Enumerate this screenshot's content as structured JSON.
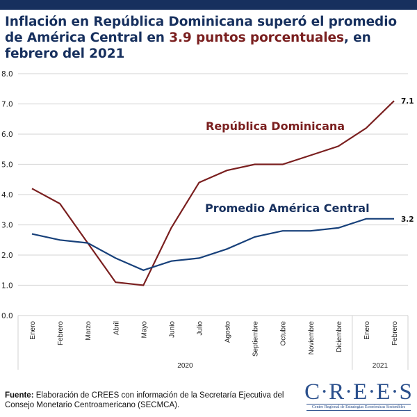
{
  "header": {
    "title_part1": "Inflación en República Dominicana superó el promedio de América Central en ",
    "title_highlight": "3.9 puntos porcentuales",
    "title_part2": ", en febrero del 2021",
    "colors": {
      "title": "#17305e",
      "highlight": "#7a1f1f",
      "bar": "#17305e"
    }
  },
  "chart_data": {
    "type": "line",
    "title": "Inflación en República Dominicana superó el promedio de América Central en 3.9 puntos porcentuales, en febrero del 2021",
    "xlabel": "",
    "ylabel": "",
    "ylim": [
      0,
      8
    ],
    "yticks": [
      "0.0",
      "1.0",
      "2.0",
      "3.0",
      "4.0",
      "5.0",
      "6.0",
      "7.0",
      "8.0"
    ],
    "grid": true,
    "categories": [
      "Enero",
      "Febrero",
      "Marzo",
      "Abril",
      "Mayo",
      "Junio",
      "Julio",
      "Agosto",
      "Septiembre",
      "Octubre",
      "Noviembre",
      "Diciembre",
      "Enero",
      "Febrero"
    ],
    "groups": [
      {
        "label": "2020",
        "count": 12
      },
      {
        "label": "2021",
        "count": 2
      }
    ],
    "series": [
      {
        "name": "República Dominicana",
        "color": "#7a1f1f",
        "values": [
          4.2,
          3.7,
          2.4,
          1.1,
          1.0,
          2.9,
          4.4,
          4.8,
          5.0,
          5.0,
          5.3,
          5.6,
          6.2,
          7.1
        ],
        "end_label": "7.1"
      },
      {
        "name": "Promedio América Central",
        "color": "#17407a",
        "values": [
          2.7,
          2.5,
          2.4,
          1.9,
          1.5,
          1.8,
          1.9,
          2.2,
          2.6,
          2.8,
          2.8,
          2.9,
          3.2,
          3.2
        ],
        "end_label": "3.2"
      }
    ],
    "annotations": [
      {
        "text": "República Dominicana",
        "series": 0
      },
      {
        "text": "Promedio América Central",
        "series": 1
      }
    ]
  },
  "footer": {
    "source_label": "Fuente:",
    "source_text": " Elaboración de CREES con información de la Secretaría Ejecutiva del Consejo Monetario Centroamericano (SECMCA)."
  },
  "logo": {
    "name": "C·R·E·E·S",
    "subtitle": "Centro Regional de Estrategias Económicas Sostenibles"
  }
}
